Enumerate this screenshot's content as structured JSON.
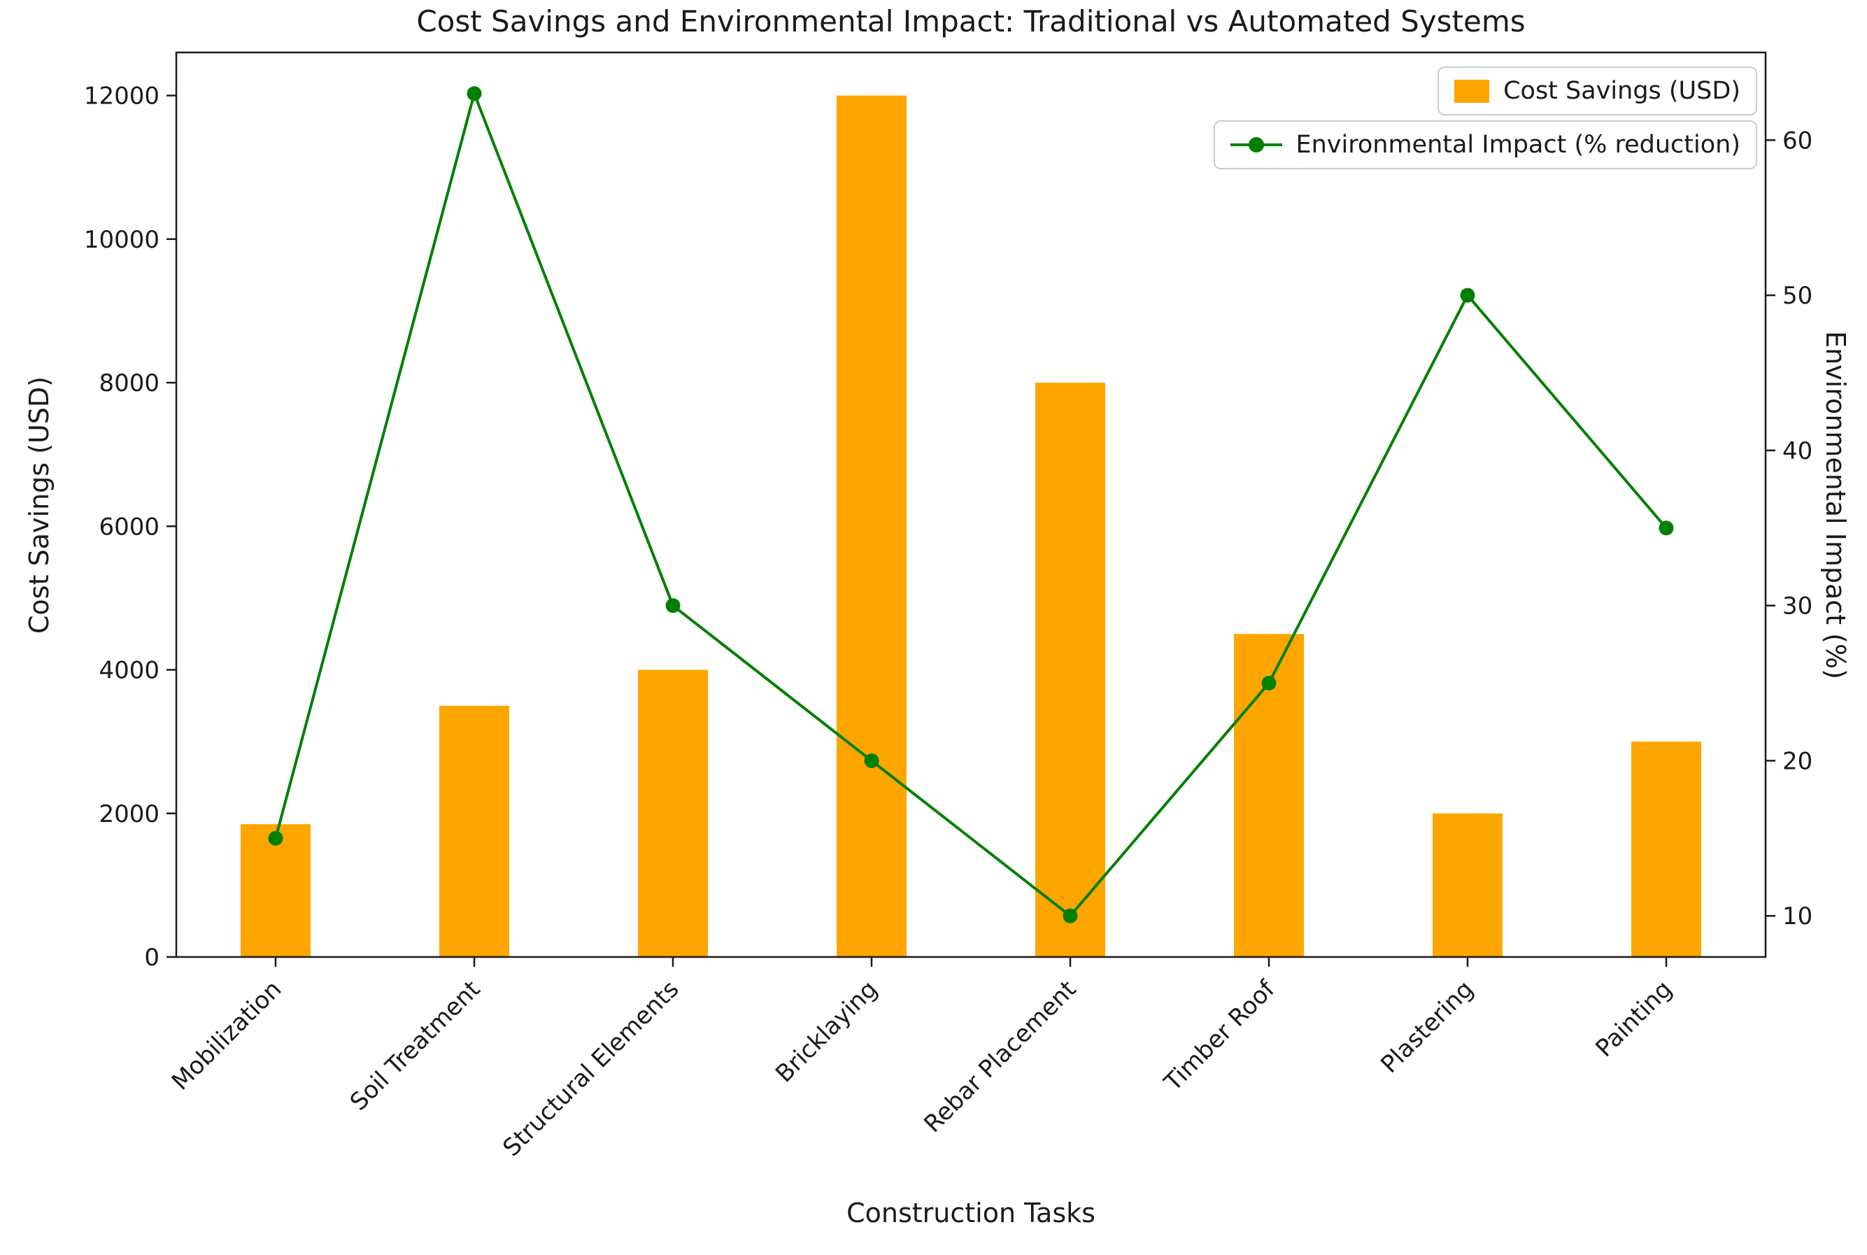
{
  "figure": {
    "title": "Cost Savings and Environmental Impact: Traditional vs Automated Systems",
    "xlabel": "Construction Tasks",
    "ylabel_left": "Cost Savings (USD)",
    "ylabel_right": "Environmental Impact (%)"
  },
  "chart_data": {
    "type": "bar",
    "subtype": "dual-axis bar + line",
    "title": "Cost Savings and Environmental Impact: Traditional vs Automated Systems",
    "xlabel": "Construction Tasks",
    "categories": [
      "Mobilization",
      "Soil Treatment",
      "Structural Elements",
      "Bricklaying",
      "Rebar Placement",
      "Timber Roof",
      "Plastering",
      "Painting"
    ],
    "series": [
      {
        "name": "Cost Savings (USD)",
        "legend_label": "Cost Savings (USD)",
        "type": "bar",
        "axis": "left",
        "color": "#FFA500",
        "values": [
          1850,
          3500,
          4000,
          12000,
          8000,
          4500,
          2000,
          3000
        ]
      },
      {
        "name": "Environmental Impact (% reduction)",
        "legend_label": "Environmental Impact (% reduction)",
        "type": "line",
        "axis": "right",
        "color": "#008000",
        "values": [
          15,
          63,
          30,
          20,
          10,
          25,
          50,
          35
        ]
      }
    ],
    "left_axis": {
      "label": "Cost Savings (USD)",
      "ticks": [
        0,
        2000,
        4000,
        6000,
        8000,
        10000,
        12000
      ],
      "range": [
        0,
        12600
      ]
    },
    "right_axis": {
      "label": "Environmental Impact (%)",
      "ticks": [
        10,
        20,
        30,
        40,
        50,
        60
      ],
      "range": [
        7.35,
        65.65
      ]
    },
    "grid": false,
    "legend_position": "upper right",
    "x_tick_rotation": 45
  }
}
